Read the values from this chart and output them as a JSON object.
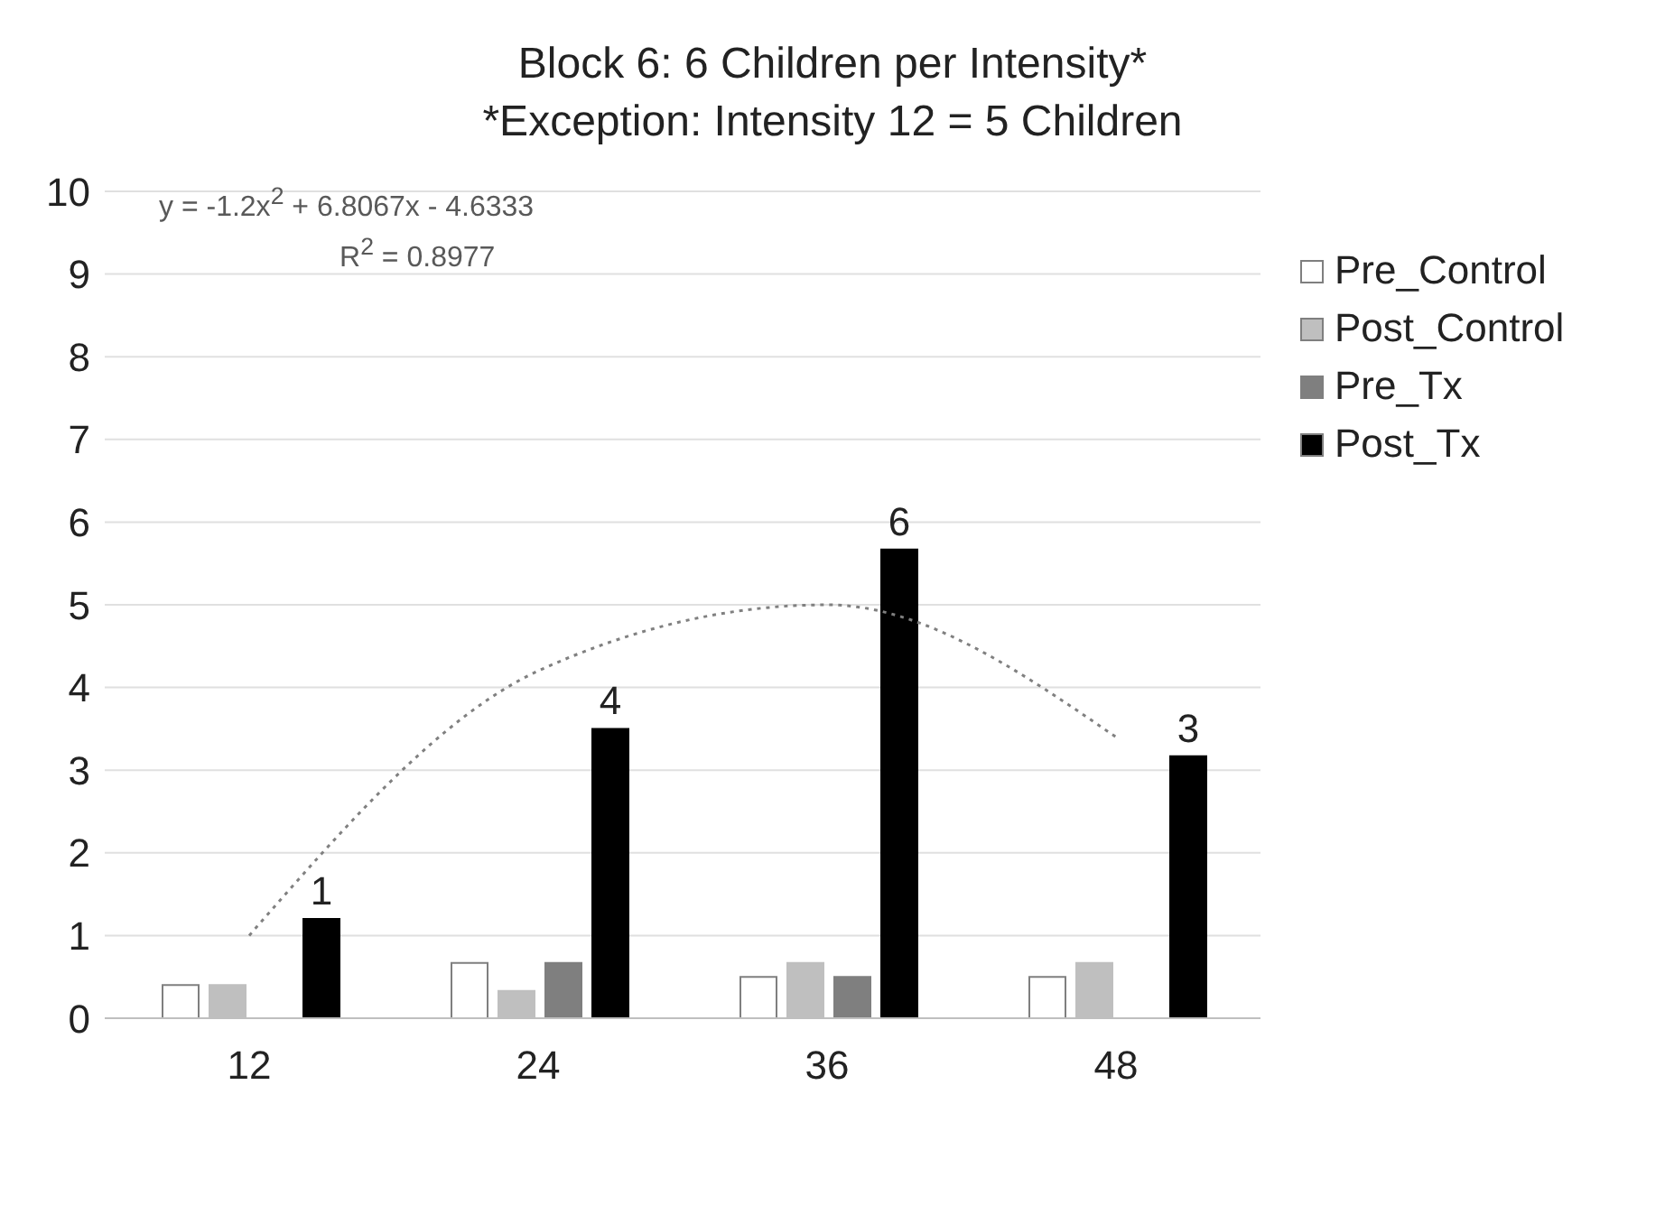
{
  "chart_data": {
    "type": "bar",
    "title": "Block 6: 6 Children per Intensity*",
    "subtitle": "*Exception: Intensity 12 = 5 Children",
    "categories": [
      "12",
      "24",
      "36",
      "48"
    ],
    "series": [
      {
        "name": "Pre_Control",
        "color": "#ffffff",
        "values": [
          0.4,
          0.67,
          0.5,
          0.5
        ]
      },
      {
        "name": "Post_Control",
        "color": "#bfbfbf",
        "values": [
          0.4,
          0.33,
          0.67,
          0.67
        ]
      },
      {
        "name": "Pre_Tx",
        "color": "#7f7f7f",
        "values": [
          0,
          0.67,
          0.5,
          0
        ]
      },
      {
        "name": "Post_Tx",
        "color": "#000000",
        "values": [
          1.2,
          3.5,
          5.67,
          3.17
        ],
        "value_labels": [
          "1",
          "4",
          "6",
          "3"
        ]
      },
      {
        "type": "line",
        "color": "#808080",
        "line_style": "dotted",
        "values": [
          1.0,
          4.2,
          5.0,
          3.4
        ]
      }
    ],
    "annotations": [
      "y = -1.2x$^{2}$ + 6.8067x - 4.6333",
      "R$^{2}$ = 0.8977"
    ],
    "ylim": [
      0,
      10
    ],
    "yticks": [
      0,
      1,
      2,
      3,
      4,
      5,
      6,
      7,
      8,
      9,
      10
    ],
    "grid": "y",
    "legend": "right"
  }
}
